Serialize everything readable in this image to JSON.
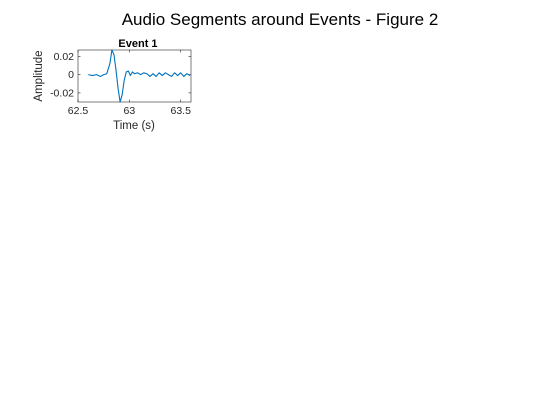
{
  "figure": {
    "suptitle": "Audio Segments around Events - Figure 2"
  },
  "chart_data": {
    "type": "line",
    "title": "Event 1",
    "xlabel": "Time (s)",
    "ylabel": "Amplitude",
    "xlim": [
      62.5,
      63.6
    ],
    "ylim": [
      -0.03,
      0.027
    ],
    "xticks": [
      62.5,
      63,
      63.5
    ],
    "xtick_labels": [
      "62.5",
      "63",
      "63.5"
    ],
    "yticks": [
      -0.02,
      0,
      0.02
    ],
    "ytick_labels": [
      "-0.02",
      "0",
      "0.02"
    ],
    "grid": false,
    "line_color": "#0072BD",
    "series": [
      {
        "x": [
          62.6,
          62.64,
          62.68,
          62.72,
          62.75,
          62.78,
          62.81,
          62.83,
          62.85,
          62.87,
          62.89,
          62.91,
          62.93,
          62.95,
          62.97,
          62.99,
          63.01,
          63.03,
          63.05,
          63.08,
          63.11,
          63.14,
          63.17,
          63.2,
          63.23,
          63.26,
          63.29,
          63.32,
          63.35,
          63.38,
          63.41,
          63.44,
          63.47,
          63.5,
          63.53,
          63.56,
          63.59
        ],
        "y": [
          0.0,
          -0.001,
          0.0,
          -0.002,
          0.0,
          0.001,
          0.012,
          0.027,
          0.022,
          0.005,
          -0.015,
          -0.03,
          -0.022,
          -0.006,
          0.003,
          0.004,
          -0.001,
          0.003,
          0.001,
          0.002,
          0.0,
          0.002,
          0.001,
          -0.002,
          0.001,
          -0.002,
          0.002,
          -0.001,
          0.002,
          0.0,
          -0.002,
          0.002,
          -0.001,
          0.002,
          -0.002,
          0.001,
          -0.001
        ]
      }
    ]
  }
}
